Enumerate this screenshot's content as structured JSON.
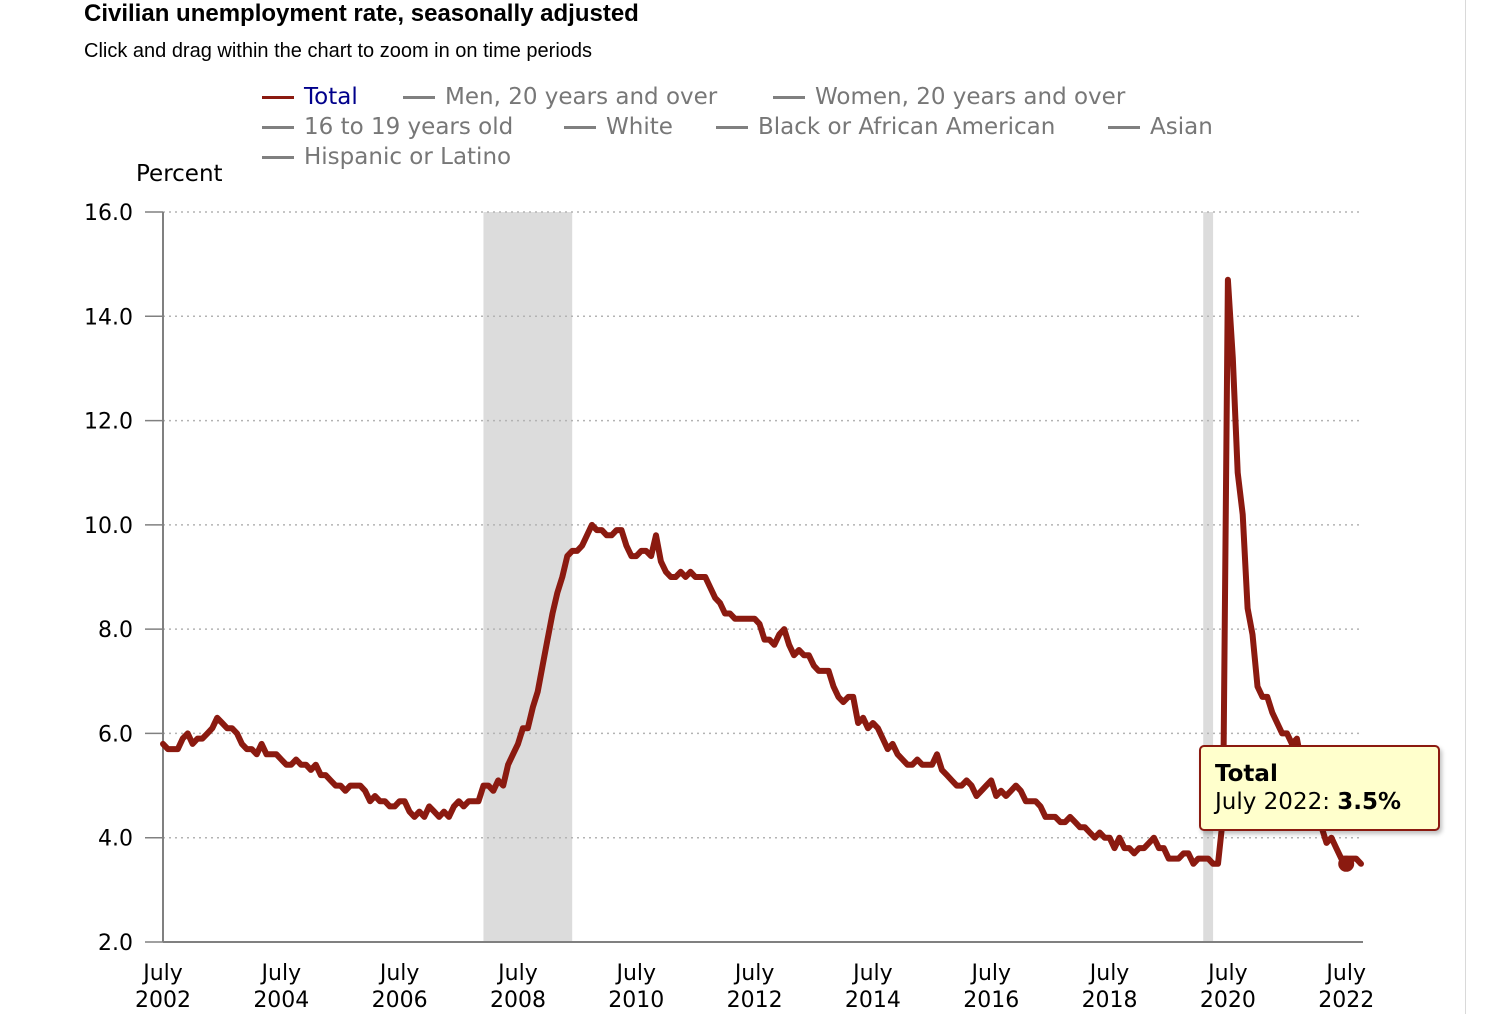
{
  "header": {
    "title": "Civilian unemployment rate, seasonally adjusted",
    "subtitle": "Click and drag within the chart to zoom in on time periods"
  },
  "legend": {
    "items": [
      {
        "label": "Total",
        "active": true
      },
      {
        "label": "Men, 20 years and over",
        "active": false
      },
      {
        "label": "Women, 20 years and over",
        "active": false
      },
      {
        "label": "16 to 19 years old",
        "active": false
      },
      {
        "label": "White",
        "active": false
      },
      {
        "label": "Black or African American",
        "active": false
      },
      {
        "label": "Asian",
        "active": false
      },
      {
        "label": "Hispanic or Latino",
        "active": false
      }
    ]
  },
  "tooltip": {
    "series": "Total",
    "date": "July 2022:",
    "value": "3.5%"
  },
  "colors": {
    "line": "#8b1a10",
    "recession": "#dcdcdc",
    "grid": "#b3b3b3",
    "axis": "#808080",
    "legend_active_text": "#00008b",
    "legend_inactive": "#777777",
    "tooltip_bg": "#ffffcc"
  },
  "chart_data": {
    "type": "line",
    "ylabel": "Percent",
    "ylim": [
      2.0,
      16.0
    ],
    "y_ticks": [
      "2.0",
      "4.0",
      "6.0",
      "8.0",
      "10.0",
      "12.0",
      "14.0",
      "16.0"
    ],
    "x_ticks": [
      {
        "line1": "July",
        "line2": "2002",
        "date": "2002-07"
      },
      {
        "line1": "July",
        "line2": "2004",
        "date": "2004-07"
      },
      {
        "line1": "July",
        "line2": "2006",
        "date": "2006-07"
      },
      {
        "line1": "July",
        "line2": "2008",
        "date": "2008-07"
      },
      {
        "line1": "July",
        "line2": "2010",
        "date": "2010-07"
      },
      {
        "line1": "July",
        "line2": "2012",
        "date": "2012-07"
      },
      {
        "line1": "July",
        "line2": "2014",
        "date": "2014-07"
      },
      {
        "line1": "July",
        "line2": "2016",
        "date": "2016-07"
      },
      {
        "line1": "July",
        "line2": "2018",
        "date": "2018-07"
      },
      {
        "line1": "July",
        "line2": "2020",
        "date": "2020-07"
      },
      {
        "line1": "July",
        "line2": "2022",
        "date": "2022-07"
      }
    ],
    "grid": true,
    "recessions": [
      {
        "start": "2007-12",
        "end": "2009-06"
      },
      {
        "start": "2020-02",
        "end": "2020-04"
      }
    ],
    "highlight": {
      "series": "Total",
      "date": "2022-07",
      "value": 3.5
    },
    "series": [
      {
        "name": "Total",
        "start": "2002-07",
        "values": [
          5.8,
          5.7,
          5.7,
          5.7,
          5.9,
          6.0,
          5.8,
          5.9,
          5.9,
          6.0,
          6.1,
          6.3,
          6.2,
          6.1,
          6.1,
          6.0,
          5.8,
          5.7,
          5.7,
          5.6,
          5.8,
          5.6,
          5.6,
          5.6,
          5.5,
          5.4,
          5.4,
          5.5,
          5.4,
          5.4,
          5.3,
          5.4,
          5.2,
          5.2,
          5.1,
          5.0,
          5.0,
          4.9,
          5.0,
          5.0,
          5.0,
          4.9,
          4.7,
          4.8,
          4.7,
          4.7,
          4.6,
          4.6,
          4.7,
          4.7,
          4.5,
          4.4,
          4.5,
          4.4,
          4.6,
          4.5,
          4.4,
          4.5,
          4.4,
          4.6,
          4.7,
          4.6,
          4.7,
          4.7,
          4.7,
          5.0,
          5.0,
          4.9,
          5.1,
          5.0,
          5.4,
          5.6,
          5.8,
          6.1,
          6.1,
          6.5,
          6.8,
          7.3,
          7.8,
          8.3,
          8.7,
          9.0,
          9.4,
          9.5,
          9.5,
          9.6,
          9.8,
          10.0,
          9.9,
          9.9,
          9.8,
          9.8,
          9.9,
          9.9,
          9.6,
          9.4,
          9.4,
          9.5,
          9.5,
          9.4,
          9.8,
          9.3,
          9.1,
          9.0,
          9.0,
          9.1,
          9.0,
          9.1,
          9.0,
          9.0,
          9.0,
          8.8,
          8.6,
          8.5,
          8.3,
          8.3,
          8.2,
          8.2,
          8.2,
          8.2,
          8.2,
          8.1,
          7.8,
          7.8,
          7.7,
          7.9,
          8.0,
          7.7,
          7.5,
          7.6,
          7.5,
          7.5,
          7.3,
          7.2,
          7.2,
          7.2,
          6.9,
          6.7,
          6.6,
          6.7,
          6.7,
          6.2,
          6.3,
          6.1,
          6.2,
          6.1,
          5.9,
          5.7,
          5.8,
          5.6,
          5.5,
          5.4,
          5.4,
          5.5,
          5.4,
          5.4,
          5.4,
          5.6,
          5.3,
          5.2,
          5.1,
          5.0,
          5.0,
          5.1,
          5.0,
          4.8,
          4.9,
          5.0,
          5.1,
          4.8,
          4.9,
          4.8,
          4.9,
          5.0,
          4.9,
          4.7,
          4.7,
          4.7,
          4.6,
          4.4,
          4.4,
          4.4,
          4.3,
          4.3,
          4.4,
          4.3,
          4.2,
          4.2,
          4.1,
          4.0,
          4.1,
          4.0,
          4.0,
          3.8,
          4.0,
          3.8,
          3.8,
          3.7,
          3.8,
          3.8,
          3.9,
          4.0,
          3.8,
          3.8,
          3.6,
          3.6,
          3.6,
          3.7,
          3.7,
          3.5,
          3.6,
          3.6,
          3.6,
          3.5,
          3.5,
          4.4,
          14.7,
          13.2,
          11.0,
          10.2,
          8.4,
          7.9,
          6.9,
          6.7,
          6.7,
          6.4,
          6.2,
          6.0,
          6.0,
          5.8,
          5.9,
          5.4,
          5.2,
          4.8,
          4.6,
          4.2,
          3.9,
          4.0,
          3.8,
          3.6,
          3.6,
          3.6,
          3.6,
          3.5
        ]
      }
    ]
  }
}
